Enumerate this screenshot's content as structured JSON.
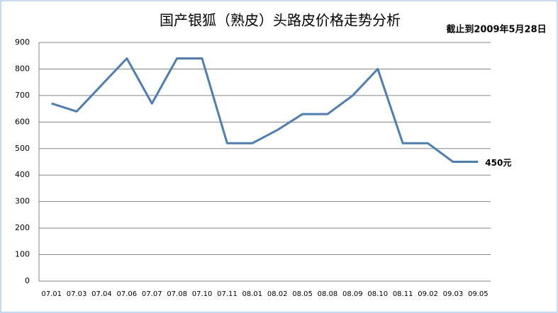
{
  "chart_data": {
    "type": "line",
    "title": "国产银狐（熟皮）头路皮价格走势分析",
    "annotation": "截止到2009年5月28日",
    "categories": [
      "07.01",
      "07.03",
      "07.04",
      "07.06",
      "07.07",
      "07.08",
      "07.10",
      "07.11",
      "08.01",
      "08.02",
      "08.05",
      "08.08",
      "08.09",
      "08.10",
      "08.11",
      "09.02",
      "09.03",
      "09.05"
    ],
    "values": [
      670,
      640,
      740,
      840,
      670,
      840,
      840,
      520,
      520,
      570,
      630,
      630,
      700,
      800,
      520,
      520,
      450,
      450
    ],
    "value_labels": [
      null,
      null,
      null,
      null,
      null,
      null,
      null,
      null,
      null,
      null,
      null,
      null,
      null,
      null,
      null,
      null,
      null,
      "450元"
    ],
    "color": "#4a7ebb",
    "ylim": [
      0,
      900
    ],
    "yticks": [
      0,
      100,
      200,
      300,
      400,
      500,
      600,
      700,
      800,
      900
    ],
    "grid": true
  }
}
